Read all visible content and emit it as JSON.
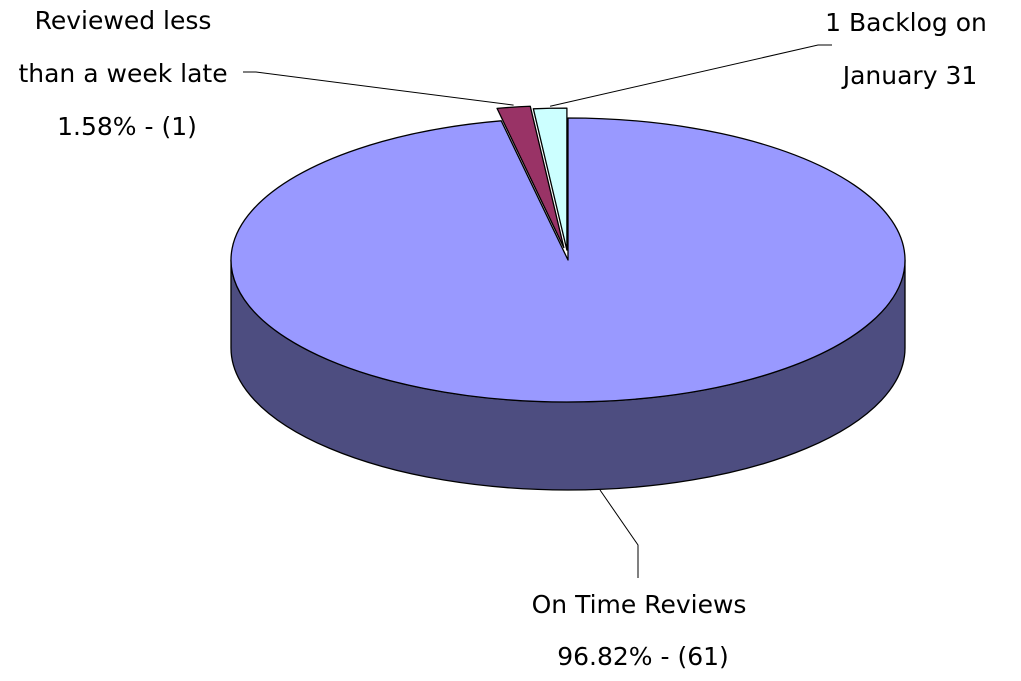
{
  "chart_data": {
    "type": "pie",
    "style": "3d-exploded",
    "title": "",
    "slices": [
      {
        "name": "On Time Reviews",
        "value": 61,
        "percent": 96.82,
        "label_lines": [
          "On Time Reviews",
          "96.82% - (61)"
        ],
        "color": "#9999FF",
        "side_color": "#4D4D80"
      },
      {
        "name": "Reviewed less than a week late",
        "value": 1,
        "percent": 1.58,
        "label_lines": [
          "Reviewed less",
          "than a week late",
          "1.58% - (1)"
        ],
        "color": "#993366",
        "side_color": "#4D1A33"
      },
      {
        "name": "1 Backlog on January 31",
        "value": 1,
        "percent": 1.58,
        "label_lines": [
          "1 Backlog on",
          "January 31"
        ],
        "color": "#CCFFFF",
        "side_color": "#668080"
      }
    ],
    "legend": "none"
  }
}
